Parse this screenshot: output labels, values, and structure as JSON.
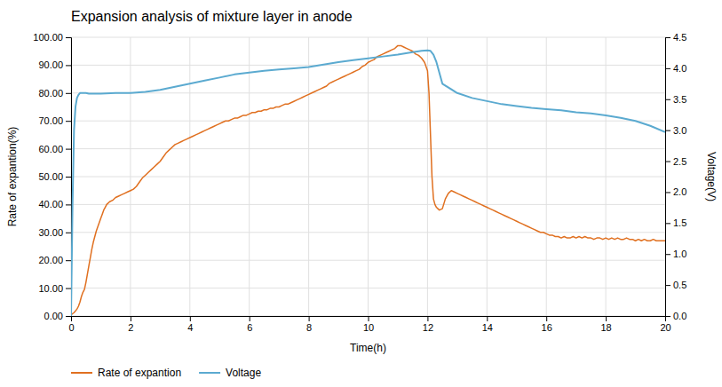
{
  "chart_data": {
    "type": "line",
    "title": "Expansion analysis of mixture layer in anode",
    "x_label": "Time(h)",
    "y_label": "Rate of expantion(%)",
    "y2_label": "Voltage(V)",
    "xlim": [
      0,
      20
    ],
    "ylim": [
      0,
      100
    ],
    "y2lim": [
      0,
      4.5
    ],
    "xticks": [
      0,
      2,
      4,
      6,
      8,
      10,
      12,
      14,
      16,
      18,
      20
    ],
    "yticks": [
      {
        "value": 0.0,
        "label": "0.00"
      },
      {
        "value": 10.0,
        "label": "10.00"
      },
      {
        "value": 20.0,
        "label": "20.00"
      },
      {
        "value": 30.0,
        "label": "30.00"
      },
      {
        "value": 40.0,
        "label": "40.00"
      },
      {
        "value": 50.0,
        "label": "50.00"
      },
      {
        "value": 60.0,
        "label": "60.00"
      },
      {
        "value": 70.0,
        "label": "70.00"
      },
      {
        "value": 80.0,
        "label": "80.00"
      },
      {
        "value": 90.0,
        "label": "90.00"
      },
      {
        "value": 100.0,
        "label": "100.00"
      }
    ],
    "y2ticks": [
      {
        "value": 0,
        "label": "0.0"
      },
      0.5,
      {
        "value": 1,
        "label": "1.0"
      },
      1.5,
      {
        "value": 2,
        "label": "2.0"
      },
      2.5,
      {
        "value": 3,
        "label": "3.0"
      },
      3.5,
      {
        "value": 4,
        "label": "4.0"
      },
      4.5
    ],
    "grid": true,
    "legend": "bottom",
    "series": [
      {
        "name": "Rate of expantion",
        "color": "#E07020",
        "x": [
          0.0,
          0.05,
          0.1,
          0.15,
          0.2,
          0.25,
          0.3,
          0.35,
          0.4,
          0.45,
          0.5,
          0.55,
          0.6,
          0.65,
          0.7,
          0.75,
          0.8,
          0.85,
          0.9,
          0.95,
          1.0,
          1.05,
          1.1,
          1.15,
          1.2,
          1.3,
          1.4,
          1.5,
          1.6,
          1.7,
          1.8,
          1.9,
          2.0,
          2.1,
          2.2,
          2.3,
          2.4,
          2.5,
          2.6,
          2.7,
          2.8,
          2.9,
          3.0,
          3.1,
          3.2,
          3.3,
          3.4,
          3.5,
          3.6,
          3.7,
          3.8,
          3.9,
          4.0,
          4.1,
          4.2,
          4.3,
          4.4,
          4.5,
          4.6,
          4.7,
          4.8,
          4.9,
          5.0,
          5.1,
          5.2,
          5.3,
          5.4,
          5.5,
          5.6,
          5.7,
          5.8,
          5.9,
          6.0,
          6.1,
          6.2,
          6.3,
          6.4,
          6.5,
          6.6,
          6.7,
          6.8,
          6.9,
          7.0,
          7.1,
          7.2,
          7.3,
          7.4,
          7.5,
          7.6,
          7.7,
          7.8,
          7.9,
          8.0,
          8.1,
          8.2,
          8.3,
          8.4,
          8.5,
          8.6,
          8.7,
          8.8,
          8.9,
          9.0,
          9.1,
          9.2,
          9.3,
          9.4,
          9.5,
          9.6,
          9.7,
          9.8,
          9.9,
          10.0,
          10.1,
          10.2,
          10.3,
          10.4,
          10.5,
          10.6,
          10.7,
          10.8,
          10.9,
          11.0,
          11.1,
          11.2,
          11.3,
          11.4,
          11.5,
          11.6,
          11.7,
          11.8,
          11.9,
          12.0,
          12.05,
          12.1,
          12.15,
          12.2,
          12.25,
          12.3,
          12.35,
          12.4,
          12.5,
          12.6,
          12.7,
          12.8,
          12.9,
          13.0,
          13.1,
          13.2,
          13.3,
          13.4,
          13.5,
          13.6,
          13.7,
          13.8,
          13.9,
          14.0,
          14.1,
          14.2,
          14.3,
          14.4,
          14.5,
          14.6,
          14.7,
          14.8,
          14.9,
          15.0,
          15.1,
          15.2,
          15.3,
          15.4,
          15.5,
          15.6,
          15.7,
          15.8,
          15.9,
          16.0,
          16.1,
          16.2,
          16.3,
          16.4,
          16.5,
          16.6,
          16.7,
          16.8,
          16.9,
          17.0,
          17.1,
          17.2,
          17.3,
          17.4,
          17.5,
          17.6,
          17.7,
          17.8,
          17.9,
          18.0,
          18.1,
          18.2,
          18.3,
          18.4,
          18.5,
          18.6,
          18.7,
          18.8,
          18.9,
          19.0,
          19.1,
          19.2,
          19.3,
          19.4,
          19.5,
          19.6,
          19.7,
          19.8,
          19.9,
          20.0
        ],
        "values": [
          0.5,
          0.8,
          1.2,
          1.8,
          2.5,
          3.5,
          5.0,
          7.0,
          8.5,
          9.5,
          12.0,
          15.0,
          18.0,
          21.0,
          24.0,
          26.5,
          28.5,
          30.5,
          32.0,
          33.5,
          35.0,
          36.5,
          38.0,
          39.0,
          40.0,
          41.0,
          41.5,
          42.5,
          43.0,
          43.5,
          44.0,
          44.5,
          45.0,
          45.5,
          46.5,
          48.0,
          49.5,
          50.5,
          51.5,
          52.5,
          53.5,
          54.5,
          55.5,
          57.0,
          58.5,
          59.5,
          60.5,
          61.5,
          62.0,
          62.5,
          63.0,
          63.5,
          64.0,
          64.5,
          65.0,
          65.5,
          66.0,
          66.5,
          67.0,
          67.5,
          68.0,
          68.5,
          69.0,
          69.5,
          70.0,
          70.0,
          70.5,
          71.0,
          71.0,
          71.5,
          72.0,
          72.0,
          72.5,
          73.0,
          73.0,
          73.5,
          73.5,
          74.0,
          74.0,
          74.5,
          74.5,
          75.0,
          75.0,
          75.5,
          76.0,
          76.0,
          76.5,
          77.0,
          77.5,
          78.0,
          78.5,
          79.0,
          79.5,
          80.0,
          80.5,
          81.0,
          81.5,
          82.0,
          82.5,
          83.5,
          84.0,
          84.5,
          85.0,
          85.5,
          86.0,
          86.5,
          87.0,
          87.5,
          88.0,
          88.5,
          89.5,
          90.0,
          91.0,
          91.5,
          92.0,
          93.0,
          93.5,
          94.0,
          94.5,
          95.0,
          95.5,
          96.0,
          97.0,
          97.0,
          96.5,
          96.0,
          95.5,
          95.0,
          94.0,
          93.5,
          92.5,
          91.0,
          88.0,
          80.0,
          65.0,
          50.0,
          42.0,
          40.0,
          39.0,
          38.5,
          38.0,
          38.5,
          42.0,
          44.0,
          45.0,
          44.5,
          44.0,
          43.5,
          43.0,
          42.5,
          42.0,
          41.5,
          41.0,
          40.5,
          40.0,
          39.5,
          39.0,
          38.5,
          38.0,
          37.5,
          37.0,
          36.5,
          36.0,
          35.5,
          35.0,
          34.5,
          34.0,
          33.5,
          33.0,
          32.5,
          32.0,
          31.5,
          31.0,
          30.5,
          30.0,
          30.0,
          29.5,
          29.0,
          29.0,
          28.5,
          28.5,
          28.0,
          28.5,
          28.0,
          28.0,
          28.5,
          28.0,
          28.5,
          28.0,
          28.5,
          28.0,
          28.0,
          27.5,
          28.0,
          28.0,
          27.5,
          28.0,
          27.5,
          28.0,
          27.5,
          28.0,
          27.5,
          27.5,
          28.0,
          27.5,
          27.5,
          27.0,
          27.5,
          27.0,
          27.5,
          27.0,
          27.0,
          27.5,
          27.0,
          27.0,
          27.0,
          27.0
        ]
      },
      {
        "name": "Voltage",
        "color": "#5BAAD0",
        "axis": "y2",
        "x": [
          0.0,
          0.05,
          0.1,
          0.15,
          0.2,
          0.25,
          0.3,
          0.35,
          0.4,
          0.5,
          0.6,
          0.8,
          1.0,
          1.5,
          2.0,
          2.5,
          3.0,
          3.5,
          4.0,
          4.5,
          5.0,
          5.5,
          6.0,
          6.5,
          7.0,
          7.5,
          8.0,
          8.5,
          9.0,
          9.5,
          10.0,
          10.5,
          11.0,
          11.5,
          11.8,
          12.0,
          12.1,
          12.2,
          12.3,
          12.5,
          13.0,
          13.5,
          14.0,
          14.5,
          15.0,
          15.5,
          16.0,
          16.5,
          17.0,
          17.5,
          18.0,
          18.5,
          19.0,
          19.5,
          20.0
        ],
        "values": [
          0.0,
          1.8,
          3.0,
          3.38,
          3.52,
          3.57,
          3.6,
          3.6,
          3.6,
          3.6,
          3.59,
          3.59,
          3.59,
          3.6,
          3.6,
          3.62,
          3.65,
          3.7,
          3.75,
          3.8,
          3.85,
          3.9,
          3.93,
          3.96,
          3.98,
          4.0,
          4.02,
          4.06,
          4.1,
          4.13,
          4.16,
          4.19,
          4.22,
          4.26,
          4.28,
          4.29,
          4.28,
          4.22,
          4.1,
          3.75,
          3.6,
          3.52,
          3.47,
          3.42,
          3.39,
          3.36,
          3.34,
          3.32,
          3.29,
          3.27,
          3.24,
          3.2,
          3.15,
          3.07,
          2.97
        ]
      }
    ]
  }
}
